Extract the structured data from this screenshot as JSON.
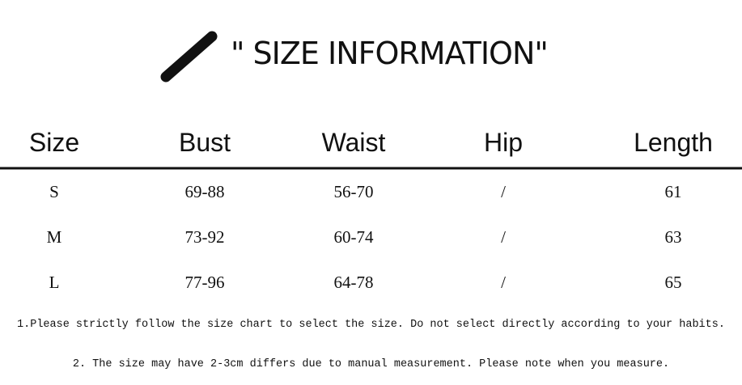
{
  "header": {
    "title": "\" SIZE INFORMATION\""
  },
  "table": {
    "columns": [
      "Size",
      "Bust",
      "Waist",
      "Hip",
      "Length"
    ],
    "rows": [
      [
        "S",
        "69-88",
        "56-70",
        "/",
        "61"
      ],
      [
        "M",
        "73-92",
        "60-74",
        "/",
        "63"
      ],
      [
        "L",
        "77-96",
        "64-78",
        "/",
        "65"
      ]
    ]
  },
  "notes": [
    "1.Please strictly follow the size chart to select the size. Do not select directly according to your habits.",
    "2. The size may have 2-3cm differs due to manual measurement. Please note when you measure."
  ]
}
